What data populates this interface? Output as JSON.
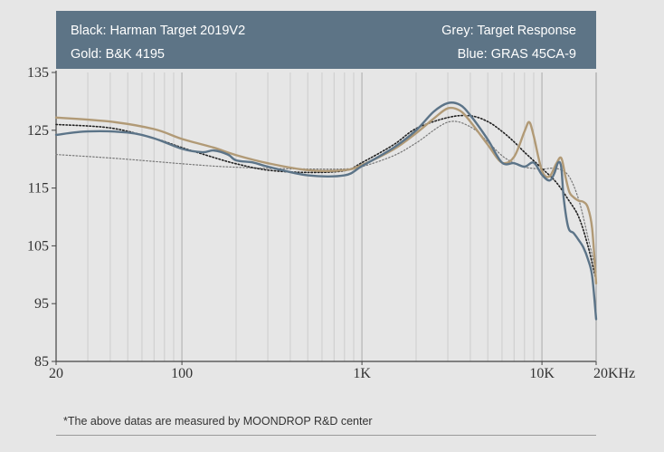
{
  "legend": {
    "black": "Black: Harman Target 2019V2",
    "gold": "Gold: B&K 4195",
    "grey": "Grey: Target Response",
    "blue": "Blue: GRAS 45CA-9"
  },
  "footnote": "*The above datas are measured by MOONDROP R&D center",
  "colors": {
    "black": "#222222",
    "gold": "#b19a76",
    "grey": "#777777",
    "blue": "#5c7488",
    "banner": "#5d7486",
    "background": "#e6e6e6"
  },
  "chart_data": {
    "type": "line",
    "xscale": "log",
    "xlim": [
      20,
      20000
    ],
    "ylim": [
      85,
      135
    ],
    "grid": "vertical log-decade gridlines",
    "yticks": [
      {
        "value": 85,
        "label": "85"
      },
      {
        "value": 95,
        "label": "95"
      },
      {
        "value": 105,
        "label": "105"
      },
      {
        "value": 115,
        "label": "115"
      },
      {
        "value": 125,
        "label": "125"
      },
      {
        "value": 135,
        "label": "135"
      }
    ],
    "xticks": [
      {
        "value": 20,
        "label": "20"
      },
      {
        "value": 100,
        "label": "100"
      },
      {
        "value": 1000,
        "label": "1K"
      },
      {
        "value": 10000,
        "label": "10K"
      },
      {
        "value": 20000,
        "label": "20KHz"
      }
    ],
    "series": [
      {
        "key": "black",
        "name": "Harman Target 2019V2",
        "dash": "dotted",
        "points": [
          [
            20,
            126
          ],
          [
            40,
            125.4
          ],
          [
            70,
            123.6
          ],
          [
            100,
            122
          ],
          [
            150,
            120.3
          ],
          [
            200,
            119.2
          ],
          [
            300,
            118.1
          ],
          [
            500,
            117.7
          ],
          [
            800,
            118
          ],
          [
            1000,
            119.4
          ],
          [
            1500,
            122.5
          ],
          [
            2000,
            125.3
          ],
          [
            3000,
            127.2
          ],
          [
            4000,
            127.5
          ],
          [
            5000,
            126.5
          ],
          [
            6000,
            124.8
          ],
          [
            7000,
            123
          ],
          [
            8000,
            121.2
          ],
          [
            10000,
            118.4
          ],
          [
            12000,
            116
          ],
          [
            14000,
            113
          ],
          [
            16000,
            110
          ],
          [
            18000,
            105
          ],
          [
            20000,
            99
          ]
        ]
      },
      {
        "key": "grey",
        "name": "Target Response",
        "dash": "dotted",
        "points": [
          [
            20,
            120.8
          ],
          [
            40,
            120.2
          ],
          [
            70,
            119.6
          ],
          [
            100,
            119.2
          ],
          [
            150,
            118.8
          ],
          [
            200,
            118.6
          ],
          [
            300,
            118.4
          ],
          [
            500,
            118.3
          ],
          [
            800,
            118.3
          ],
          [
            1000,
            118.7
          ],
          [
            1500,
            120.6
          ],
          [
            2000,
            122.8
          ],
          [
            3000,
            126.4
          ],
          [
            4000,
            125.6
          ],
          [
            5000,
            123
          ],
          [
            6000,
            120.6
          ],
          [
            7000,
            119.3
          ],
          [
            8000,
            118.6
          ],
          [
            10000,
            118.3
          ],
          [
            12000,
            118.4
          ],
          [
            14000,
            117.2
          ],
          [
            16000,
            113
          ],
          [
            18000,
            106.5
          ],
          [
            20000,
            100.5
          ]
        ]
      },
      {
        "key": "gold",
        "name": "B&K 4195",
        "dash": "solid",
        "points": [
          [
            20,
            127.2
          ],
          [
            40,
            126.5
          ],
          [
            70,
            125.2
          ],
          [
            100,
            123.5
          ],
          [
            150,
            122
          ],
          [
            200,
            120.7
          ],
          [
            300,
            119.3
          ],
          [
            500,
            118.1
          ],
          [
            800,
            118.1
          ],
          [
            1000,
            119
          ],
          [
            1500,
            121.7
          ],
          [
            2000,
            124.5
          ],
          [
            2500,
            127
          ],
          [
            3000,
            128.8
          ],
          [
            3500,
            128.4
          ],
          [
            4000,
            126.5
          ],
          [
            5000,
            122.5
          ],
          [
            6000,
            119.4
          ],
          [
            7000,
            120.4
          ],
          [
            8000,
            124.8
          ],
          [
            8500,
            126.4
          ],
          [
            9000,
            124
          ],
          [
            10000,
            118
          ],
          [
            11000,
            117
          ],
          [
            12000,
            119.2
          ],
          [
            12800,
            120.2
          ],
          [
            13500,
            117
          ],
          [
            14200,
            114.3
          ],
          [
            15000,
            113.4
          ],
          [
            16000,
            112.8
          ],
          [
            17000,
            112.6
          ],
          [
            18000,
            111.6
          ],
          [
            19000,
            108
          ],
          [
            20000,
            98.5
          ]
        ]
      },
      {
        "key": "blue",
        "name": "GRAS 45CA-9",
        "dash": "solid",
        "points": [
          [
            20,
            124.2
          ],
          [
            30,
            124.8
          ],
          [
            50,
            124.6
          ],
          [
            70,
            123.6
          ],
          [
            100,
            121.8
          ],
          [
            130,
            121.2
          ],
          [
            150,
            121.5
          ],
          [
            180,
            120.8
          ],
          [
            200,
            119.8
          ],
          [
            250,
            119.4
          ],
          [
            300,
            118.7
          ],
          [
            500,
            117.2
          ],
          [
            800,
            117.2
          ],
          [
            1000,
            118.8
          ],
          [
            1500,
            122
          ],
          [
            2000,
            125
          ],
          [
            2500,
            128.2
          ],
          [
            3000,
            129.7
          ],
          [
            3500,
            129.4
          ],
          [
            4000,
            127.6
          ],
          [
            5000,
            123.4
          ],
          [
            6000,
            119.4
          ],
          [
            7000,
            119.3
          ],
          [
            8000,
            118.7
          ],
          [
            9000,
            119.4
          ],
          [
            10000,
            117.3
          ],
          [
            11000,
            116.3
          ],
          [
            11700,
            117.5
          ],
          [
            12300,
            119.4
          ],
          [
            12800,
            118.6
          ],
          [
            13200,
            113.3
          ],
          [
            14000,
            108.2
          ],
          [
            15000,
            107.2
          ],
          [
            16000,
            106
          ],
          [
            17000,
            104.7
          ],
          [
            18000,
            102.7
          ],
          [
            19000,
            99.8
          ],
          [
            20000,
            92.3
          ]
        ]
      }
    ]
  }
}
